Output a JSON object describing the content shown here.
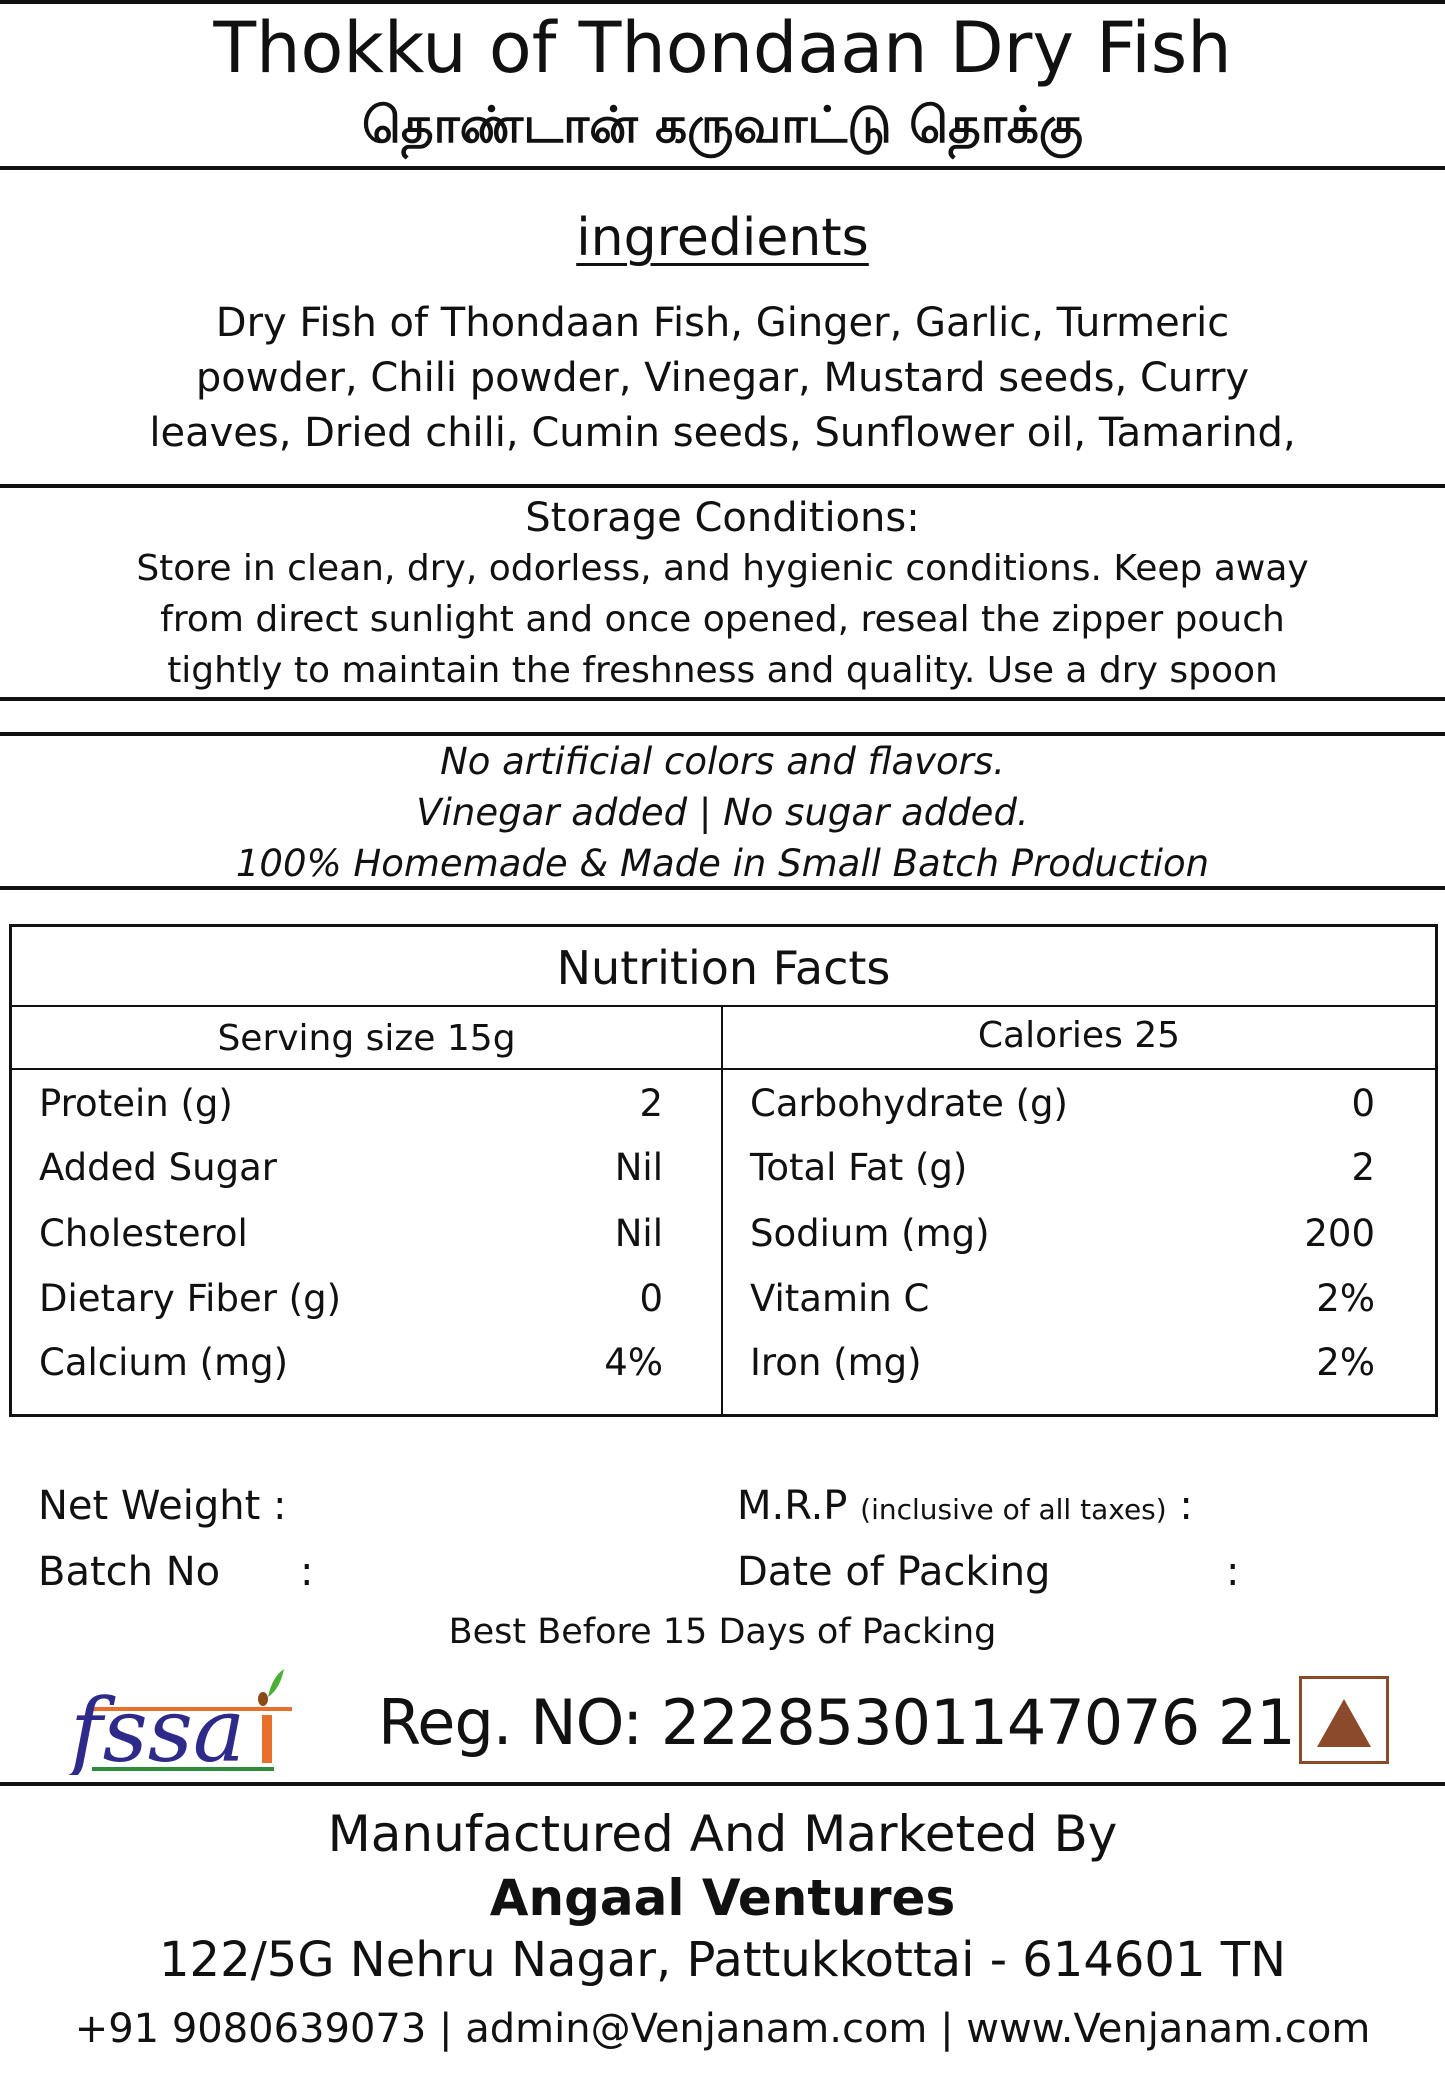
{
  "header": {
    "title": "Thokku of Thondaan Dry Fish",
    "title_tamil": "தொண்டான் கருவாட்டு தொக்கு"
  },
  "ingredients": {
    "heading": "ingredients",
    "lines": [
      "Dry Fish of Thondaan Fish, Ginger, Garlic, Turmeric",
      "powder, Chili powder, Vinegar, Mustard seeds, Curry",
      "leaves, Dried chili, Cumin seeds, Sunflower oil, Tamarind,"
    ]
  },
  "storage": {
    "heading": "Storage Conditions:",
    "lines": [
      "Store in clean, dry, odorless, and hygienic conditions. Keep away",
      "from direct sunlight and once opened, reseal the zipper pouch",
      "tightly to maintain the freshness and quality. Use a dry spoon"
    ]
  },
  "claims": [
    "No artificial colors and flavors.",
    "Vinegar added | No sugar added.",
    "100% Homemade & Made in Small Batch Production"
  ],
  "nutrition": {
    "title": "Nutrition Facts",
    "serving_size": "Serving size 15g",
    "calories": "Calories 25",
    "left": [
      {
        "label": "Protein (g)",
        "value": "2"
      },
      {
        "label": "Added Sugar",
        "value": "Nil"
      },
      {
        "label": "Cholesterol",
        "value": "Nil"
      },
      {
        "label": "Dietary Fiber (g)",
        "value": "0"
      },
      {
        "label": "Calcium (mg)",
        "value": "4%"
      }
    ],
    "right": [
      {
        "label": "Carbohydrate (g)",
        "value": "0"
      },
      {
        "label": "Total Fat (g)",
        "value": "2"
      },
      {
        "label": "Sodium (mg)",
        "value": "200"
      },
      {
        "label": "Vitamin C",
        "value": "2%"
      },
      {
        "label": "Iron (mg)",
        "value": "2%"
      }
    ]
  },
  "details": {
    "net_weight": "Net Weight :",
    "batch_no": "Batch No",
    "colon": ":",
    "mrp": "M.R.P",
    "mrp_note": "(inclusive of all taxes)",
    "mrp_colon": " :",
    "date_of_packing": "Date of Packing",
    "best_before": "Best Before 15 Days of Packing"
  },
  "fssai": {
    "logo_text": "fssai",
    "reg_no": "Reg. NO: 22285301147076 21",
    "nonveg_symbol_color": "#8b4a2b"
  },
  "footer": {
    "manufactured_by": "Manufactured And Marketed By",
    "company": "Angaal Ventures",
    "address": "122/5G Nehru Nagar, Pattukkottai - 614601 TN",
    "contact": "+91 9080639073 | admin@Venjanam.com | www.Venjanam.com"
  }
}
